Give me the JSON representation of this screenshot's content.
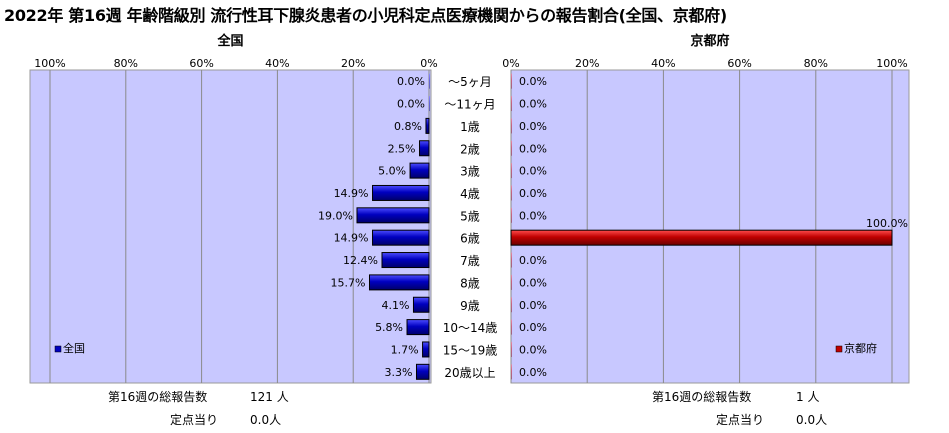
{
  "title": "2022年 第16週 年齢階級別 流行性耳下腺炎患者の小児科定点医療機関からの報告割合(全国、京都府)",
  "colors": {
    "plot_bg": "#c8c8ff",
    "national_bar": "#0000c0",
    "kyoto_bar": "#c00000",
    "grid": "#8a8a8a"
  },
  "chart_data": [
    {
      "type": "bar",
      "orientation": "horizontal",
      "direction": "right-to-left",
      "title": "全国",
      "legend": "全国",
      "legend_position": "bottom-left",
      "xlim": [
        0,
        100
      ],
      "ticks": [
        "100%",
        "80%",
        "60%",
        "40%",
        "20%",
        "0%"
      ],
      "tick_values": [
        100,
        80,
        60,
        40,
        20,
        0
      ],
      "grid": true,
      "categories": [
        "～5ヶ月",
        "～11ヶ月",
        "1歳",
        "2歳",
        "3歳",
        "4歳",
        "5歳",
        "6歳",
        "7歳",
        "8歳",
        "9歳",
        "10～14歳",
        "15～19歳",
        "20歳以上"
      ],
      "values": [
        0.0,
        0.0,
        0.8,
        2.5,
        5.0,
        14.9,
        19.0,
        14.9,
        12.4,
        15.7,
        4.1,
        5.8,
        1.7,
        3.3
      ],
      "labels": [
        "0.0%",
        "0.0%",
        "0.8%",
        "2.5%",
        "5.0%",
        "14.9%",
        "19.0%",
        "14.9%",
        "12.4%",
        "15.7%",
        "4.1%",
        "5.8%",
        "1.7%",
        "3.3%"
      ]
    },
    {
      "type": "bar",
      "orientation": "horizontal",
      "direction": "left-to-right",
      "title": "京都府",
      "legend": "京都府",
      "legend_position": "bottom-right",
      "xlim": [
        0,
        100
      ],
      "ticks": [
        "0%",
        "20%",
        "40%",
        "60%",
        "80%",
        "100%"
      ],
      "tick_values": [
        0,
        20,
        40,
        60,
        80,
        100
      ],
      "grid": true,
      "categories": [
        "～5ヶ月",
        "～11ヶ月",
        "1歳",
        "2歳",
        "3歳",
        "4歳",
        "5歳",
        "6歳",
        "7歳",
        "8歳",
        "9歳",
        "10～14歳",
        "15～19歳",
        "20歳以上"
      ],
      "values": [
        0.0,
        0.0,
        0.0,
        0.0,
        0.0,
        0.0,
        0.0,
        100.0,
        0.0,
        0.0,
        0.0,
        0.0,
        0.0,
        0.0
      ],
      "labels": [
        "0.0%",
        "0.0%",
        "0.0%",
        "0.0%",
        "0.0%",
        "0.0%",
        "0.0%",
        "100.0%",
        "0.0%",
        "0.0%",
        "0.0%",
        "0.0%",
        "0.0%",
        "0.0%"
      ]
    }
  ],
  "footer": {
    "national": {
      "total_label": "第16週の総報告数",
      "total_value": "121 人",
      "per_label": "定点当り",
      "per_value": "0.0人"
    },
    "kyoto": {
      "total_label": "第16週の総報告数",
      "total_value": "1 人",
      "per_label": "定点当り",
      "per_value": "0.0人"
    }
  }
}
